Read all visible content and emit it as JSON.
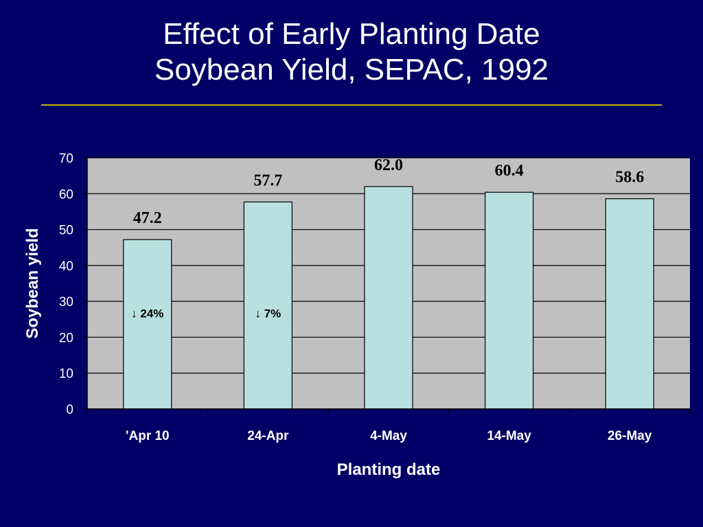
{
  "title_lines": [
    "Effect of Early Planting Date",
    "Soybean Yield, SEPAC, 1992"
  ],
  "colors": {
    "background": "#000066",
    "plot_area": "#c0c0c0",
    "bar_fill": "#b8e0e0",
    "text": "#ffffff",
    "title_rule": "#c8b400"
  },
  "chart_data": {
    "type": "bar",
    "categories": [
      "'Apr 10",
      "24-Apr",
      "4-May",
      "14-May",
      "26-May"
    ],
    "values": [
      47.2,
      57.7,
      62.0,
      60.4,
      58.6
    ],
    "value_labels": [
      "47.2",
      "57.7",
      "62.0",
      "60.4",
      "58.6"
    ],
    "annotations": [
      {
        "category": "'Apr 10",
        "text": "↓ 24%",
        "y": 25.5
      },
      {
        "category": "24-Apr",
        "text": "↓ 7%",
        "y": 25.5
      }
    ],
    "xlabel": "Planting date",
    "ylabel": "Soybean yield",
    "ylim": [
      0,
      70
    ],
    "yticks": [
      0,
      10,
      20,
      30,
      40,
      50,
      60,
      70
    ],
    "grid": true,
    "legend": "none"
  }
}
